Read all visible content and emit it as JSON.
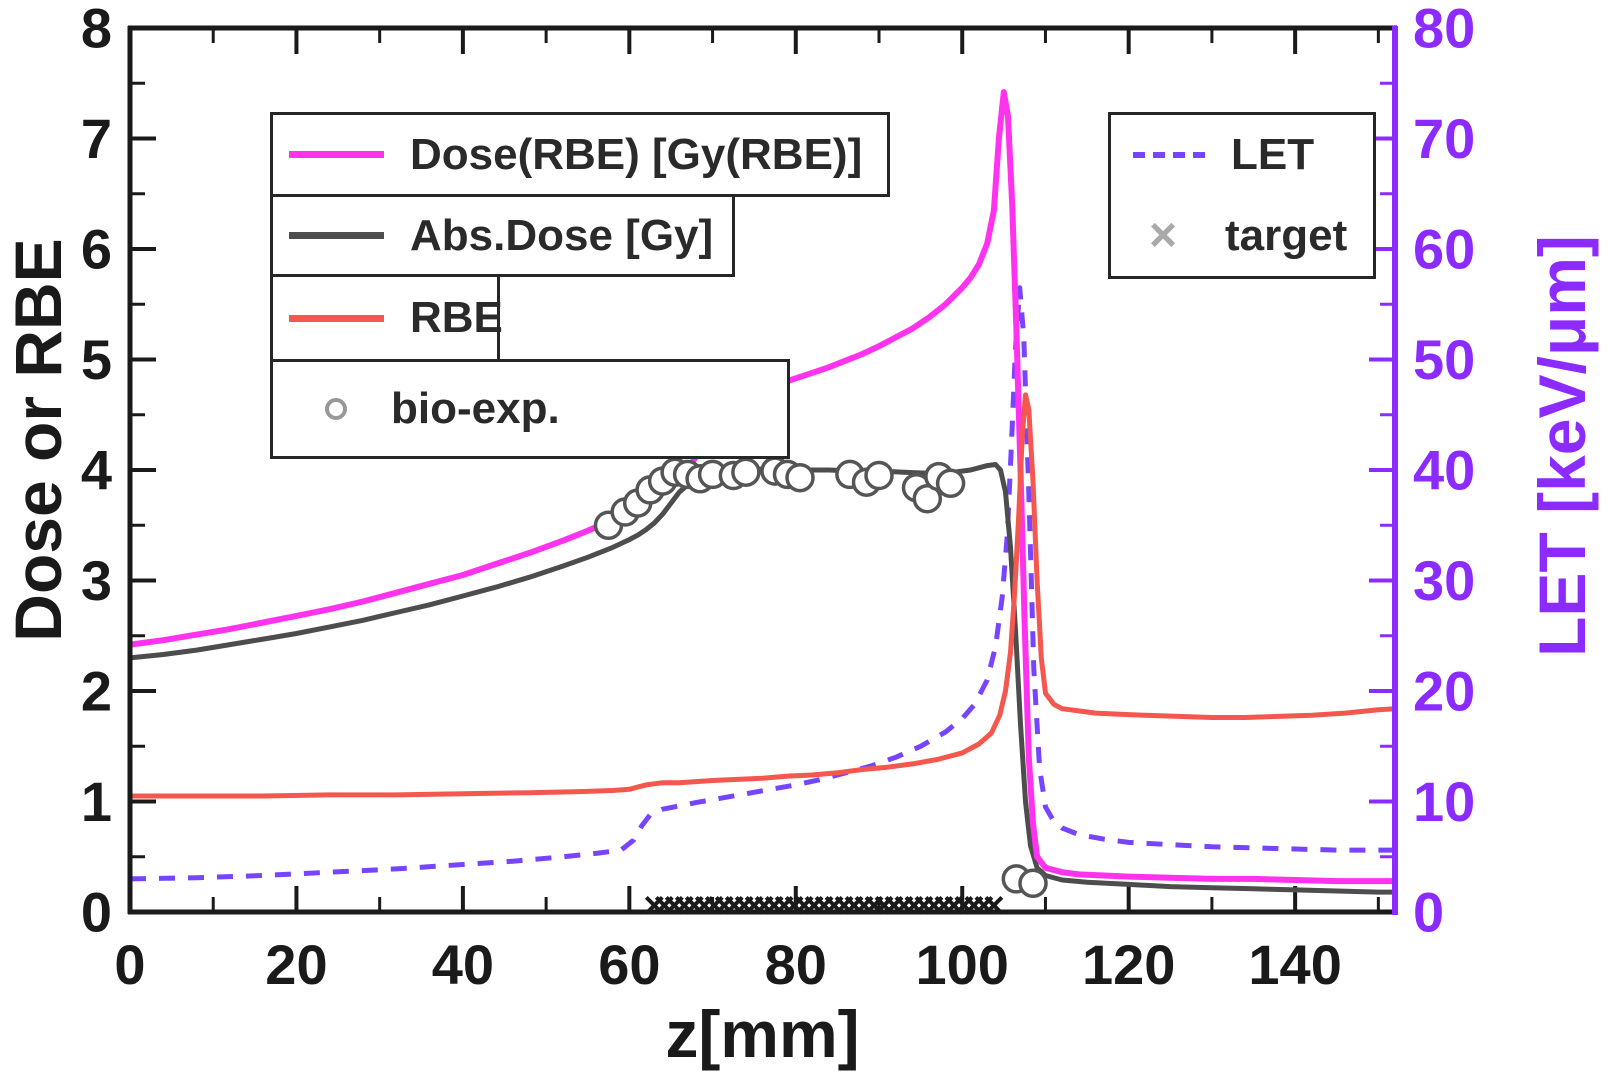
{
  "chart_data": {
    "type": "line",
    "title": "",
    "xlabel": "z[mm]",
    "ylabel_left": "Dose or RBE",
    "ylabel_right": "LET [keV/μm]",
    "xlim": [
      0,
      152
    ],
    "ylim_left": [
      0,
      8
    ],
    "ylim_right": [
      0,
      80
    ],
    "x_major_ticks": [
      0,
      20,
      40,
      60,
      80,
      100,
      120,
      140
    ],
    "x_minor_ticks": [
      10,
      30,
      50,
      70,
      90,
      110,
      130,
      150
    ],
    "y_left_ticks": [
      0,
      1,
      2,
      3,
      4,
      5,
      6,
      7,
      8
    ],
    "y_left_minor_ticks": [
      0.5,
      1.5,
      2.5,
      3.5,
      4.5,
      5.5,
      6.5,
      7.5
    ],
    "y_right_ticks": [
      0,
      10,
      20,
      30,
      40,
      50,
      60,
      70,
      80
    ],
    "y_right_minor_ticks": [
      5,
      15,
      25,
      35,
      45,
      55,
      65,
      75
    ],
    "grid": false,
    "colors": {
      "frame": "#1a1a1a",
      "right_axis": "#8c2bff",
      "dose_rbe": "#ff33ee",
      "abs_dose": "#4d4d4d",
      "rbe": "#f4574d",
      "let": "#7744ff",
      "bio_marker": "#555555",
      "bio_legend": "#999999",
      "target": "#1a1a1a",
      "target_legend": "#a9a9a9"
    },
    "series": [
      {
        "id": "let",
        "name": "LET",
        "axis": "right",
        "style": "dashed",
        "color_key": "let",
        "width": 5,
        "x": [
          0,
          8,
          16,
          24,
          32,
          40,
          46,
          52,
          56,
          59,
          60.5,
          61.5,
          62.5,
          64,
          66,
          68,
          71,
          74,
          77,
          80,
          83,
          86,
          89,
          92,
          95,
          98,
          100,
          101.5,
          103,
          104,
          104.8,
          105.4,
          105.9,
          106.4,
          106.9,
          107.4,
          108,
          108.6,
          109.3,
          110,
          111,
          112,
          114,
          117,
          120,
          125,
          130,
          135,
          140,
          145,
          150,
          152
        ],
        "y": [
          3.0,
          3.1,
          3.3,
          3.6,
          3.9,
          4.3,
          4.6,
          5.0,
          5.3,
          5.6,
          6.5,
          7.8,
          8.8,
          9.3,
          9.6,
          9.9,
          10.3,
          10.7,
          11.1,
          11.5,
          12.0,
          12.6,
          13.2,
          14.0,
          15.0,
          16.3,
          17.5,
          18.8,
          21.0,
          24.0,
          28.5,
          34.0,
          42.0,
          51.0,
          56.5,
          52.0,
          38.0,
          22.0,
          13.0,
          9.5,
          8.2,
          7.6,
          7.0,
          6.6,
          6.3,
          6.1,
          5.9,
          5.8,
          5.7,
          5.6,
          5.6,
          5.6
        ]
      },
      {
        "id": "abs_dose",
        "name": "Abs.Dose [Gy]",
        "axis": "left",
        "style": "solid",
        "color_key": "abs_dose",
        "width": 5,
        "x": [
          0,
          4,
          8,
          12,
          16,
          20,
          24,
          28,
          32,
          36,
          40,
          44,
          48,
          52,
          55,
          58,
          60,
          61,
          62,
          63,
          64,
          65,
          66,
          68,
          70,
          72,
          75,
          78,
          81,
          84,
          87,
          90,
          93,
          96,
          99,
          101,
          102,
          103,
          104,
          104.6,
          105.2,
          105.8,
          106.4,
          107,
          107.6,
          108.2,
          109,
          110,
          112,
          115,
          120,
          125,
          130,
          135,
          140,
          145,
          150,
          152
        ],
        "y": [
          2.3,
          2.33,
          2.37,
          2.42,
          2.47,
          2.52,
          2.58,
          2.64,
          2.71,
          2.78,
          2.86,
          2.94,
          3.03,
          3.13,
          3.21,
          3.3,
          3.37,
          3.41,
          3.46,
          3.52,
          3.6,
          3.7,
          3.8,
          3.93,
          3.99,
          4.01,
          4.01,
          4.0,
          4.0,
          4.0,
          3.99,
          3.99,
          3.98,
          3.97,
          3.98,
          4.0,
          4.02,
          4.04,
          4.05,
          4.0,
          3.8,
          3.3,
          2.55,
          1.7,
          1.0,
          0.6,
          0.4,
          0.33,
          0.29,
          0.27,
          0.25,
          0.23,
          0.22,
          0.21,
          0.2,
          0.19,
          0.18,
          0.18
        ]
      },
      {
        "id": "dose_rbe",
        "name": "Dose(RBE) [Gy(RBE)]",
        "axis": "left",
        "style": "solid",
        "color_key": "dose_rbe",
        "width": 6,
        "x": [
          0,
          4,
          8,
          12,
          16,
          20,
          24,
          28,
          32,
          36,
          40,
          44,
          48,
          52,
          55,
          58,
          60,
          62,
          63,
          64,
          65,
          66,
          67,
          68,
          69,
          70,
          72,
          74,
          76,
          78,
          80,
          82,
          84,
          86,
          88,
          90,
          92,
          94,
          96,
          98,
          100,
          101,
          102,
          103,
          103.8,
          104.4,
          105,
          105.5,
          106,
          106.5,
          107,
          107.5,
          108,
          108.5,
          109,
          110,
          111,
          112,
          114,
          117,
          120,
          125,
          130,
          135,
          140,
          145,
          150,
          152
        ],
        "y": [
          2.42,
          2.46,
          2.51,
          2.56,
          2.62,
          2.68,
          2.74,
          2.81,
          2.89,
          2.97,
          3.05,
          3.15,
          3.25,
          3.36,
          3.45,
          3.55,
          3.62,
          3.7,
          3.74,
          3.79,
          3.85,
          3.92,
          4.0,
          4.12,
          4.3,
          4.5,
          4.62,
          4.68,
          4.73,
          4.78,
          4.83,
          4.88,
          4.93,
          4.99,
          5.05,
          5.12,
          5.2,
          5.28,
          5.38,
          5.5,
          5.65,
          5.74,
          5.86,
          6.05,
          6.35,
          7.0,
          7.42,
          7.2,
          6.4,
          5.3,
          4.0,
          2.6,
          1.4,
          0.8,
          0.5,
          0.4,
          0.38,
          0.36,
          0.34,
          0.33,
          0.32,
          0.31,
          0.3,
          0.3,
          0.29,
          0.28,
          0.28,
          0.28
        ]
      },
      {
        "id": "rbe",
        "name": "RBE",
        "axis": "left",
        "style": "solid",
        "color_key": "rbe",
        "width": 5,
        "x": [
          0,
          8,
          16,
          24,
          32,
          40,
          48,
          54,
          58,
          60,
          61,
          62,
          63,
          64,
          66,
          68,
          70,
          73,
          76,
          79,
          82,
          85,
          88,
          91,
          94,
          97,
          100,
          102,
          103.5,
          104.5,
          105.2,
          105.8,
          106.3,
          106.8,
          107.2,
          107.6,
          108,
          108.5,
          109,
          109.5,
          110,
          111,
          112,
          114,
          116,
          119,
          122,
          126,
          130,
          134,
          138,
          142,
          146,
          150,
          152
        ],
        "y": [
          1.05,
          1.05,
          1.05,
          1.06,
          1.06,
          1.07,
          1.08,
          1.09,
          1.1,
          1.11,
          1.13,
          1.15,
          1.16,
          1.17,
          1.17,
          1.18,
          1.19,
          1.2,
          1.21,
          1.23,
          1.24,
          1.26,
          1.29,
          1.31,
          1.34,
          1.38,
          1.44,
          1.52,
          1.62,
          1.78,
          2.0,
          2.35,
          2.9,
          3.6,
          4.3,
          4.68,
          4.55,
          3.9,
          3.0,
          2.3,
          1.98,
          1.88,
          1.84,
          1.82,
          1.8,
          1.79,
          1.78,
          1.77,
          1.76,
          1.76,
          1.77,
          1.78,
          1.8,
          1.83,
          1.84
        ]
      }
    ],
    "bio_exp_points": {
      "name": "bio-exp.",
      "marker": "circle",
      "x": [
        57.5,
        59.5,
        61,
        62.5,
        64,
        65.5,
        67,
        68.5,
        70,
        72.5,
        74,
        77.5,
        79,
        80.5,
        86.5,
        88.5,
        90,
        94.5,
        95.8,
        97.2,
        98.6,
        106.5,
        108.5
      ],
      "y": [
        3.5,
        3.62,
        3.7,
        3.82,
        3.9,
        3.98,
        3.96,
        3.92,
        3.96,
        3.95,
        3.98,
        3.99,
        3.96,
        3.93,
        3.96,
        3.89,
        3.95,
        3.84,
        3.74,
        3.94,
        3.88,
        0.3,
        0.26
      ]
    },
    "target_markers": {
      "name": "target",
      "marker": "x",
      "x_start": 63,
      "x_end": 104.5,
      "step": 1.2,
      "y": 0.06
    }
  },
  "legend_left": [
    {
      "label": "Dose(RBE) [Gy(RBE)]",
      "swatch": "line",
      "color_key": "dose_rbe"
    },
    {
      "label": "Abs.Dose [Gy]",
      "swatch": "line",
      "color_key": "abs_dose"
    },
    {
      "label": "RBE",
      "swatch": "line",
      "color_key": "rbe"
    },
    {
      "label": "bio-exp.",
      "swatch": "circle",
      "color_key": "bio_legend"
    }
  ],
  "legend_right": [
    {
      "label": "LET",
      "swatch": "dashed-line",
      "color_key": "let"
    },
    {
      "label": "target",
      "swatch": "x",
      "glyph": "×",
      "color_key": "target_legend"
    }
  ]
}
